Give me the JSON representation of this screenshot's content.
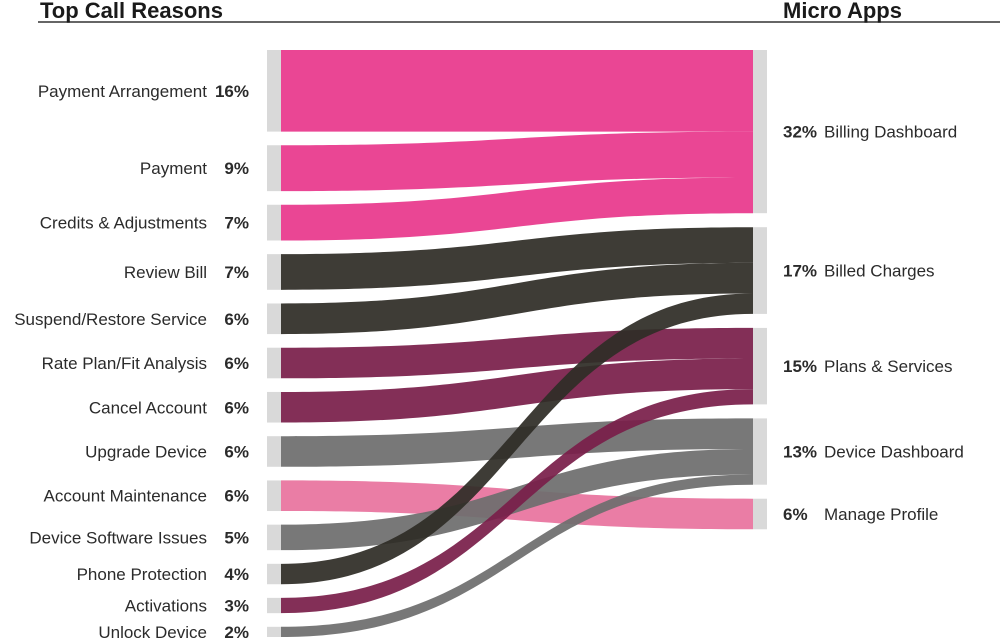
{
  "chart_data": {
    "type": "sankey",
    "left_header": "Top Call Reasons",
    "right_header": "Micro Apps",
    "sources": [
      {
        "label": "Payment Arrangement",
        "pct": "16%",
        "value": 16,
        "target": "Billing Dashboard"
      },
      {
        "label": "Payment",
        "pct": "9%",
        "value": 9,
        "target": "Billing Dashboard"
      },
      {
        "label": "Credits & Adjustments",
        "pct": "7%",
        "value": 7,
        "target": "Billing Dashboard"
      },
      {
        "label": "Review Bill",
        "pct": "7%",
        "value": 7,
        "target": "Billed Charges"
      },
      {
        "label": "Suspend/Restore Service",
        "pct": "6%",
        "value": 6,
        "target": "Billed Charges"
      },
      {
        "label": "Rate Plan/Fit Analysis",
        "pct": "6%",
        "value": 6,
        "target": "Plans & Services"
      },
      {
        "label": "Cancel Account",
        "pct": "6%",
        "value": 6,
        "target": "Plans & Services"
      },
      {
        "label": "Upgrade Device",
        "pct": "6%",
        "value": 6,
        "target": "Device Dashboard"
      },
      {
        "label": "Account Maintenance",
        "pct": "6%",
        "value": 6,
        "target": "Manage Profile"
      },
      {
        "label": "Device Software Issues",
        "pct": "5%",
        "value": 5,
        "target": "Device Dashboard"
      },
      {
        "label": "Phone Protection",
        "pct": "4%",
        "value": 4,
        "target": "Billed Charges"
      },
      {
        "label": "Activations",
        "pct": "3%",
        "value": 3,
        "target": "Plans & Services"
      },
      {
        "label": "Unlock Device",
        "pct": "2%",
        "value": 2,
        "target": "Device Dashboard"
      }
    ],
    "targets": [
      {
        "label": "Billing Dashboard",
        "pct": "32%",
        "value": 32,
        "color": "#e8388c"
      },
      {
        "label": "Billed Charges",
        "pct": "17%",
        "value": 17,
        "color": "#2f2d27"
      },
      {
        "label": "Plans & Services",
        "pct": "15%",
        "value": 15,
        "color": "#7a1f4a"
      },
      {
        "label": "Device Dashboard",
        "pct": "13%",
        "value": 13,
        "color": "#6e6e6e"
      },
      {
        "label": "Manage Profile",
        "pct": "6%",
        "value": 6,
        "color": "#e8739e"
      }
    ],
    "node_color": "#d9d9d9",
    "rule_color": "#666666"
  }
}
